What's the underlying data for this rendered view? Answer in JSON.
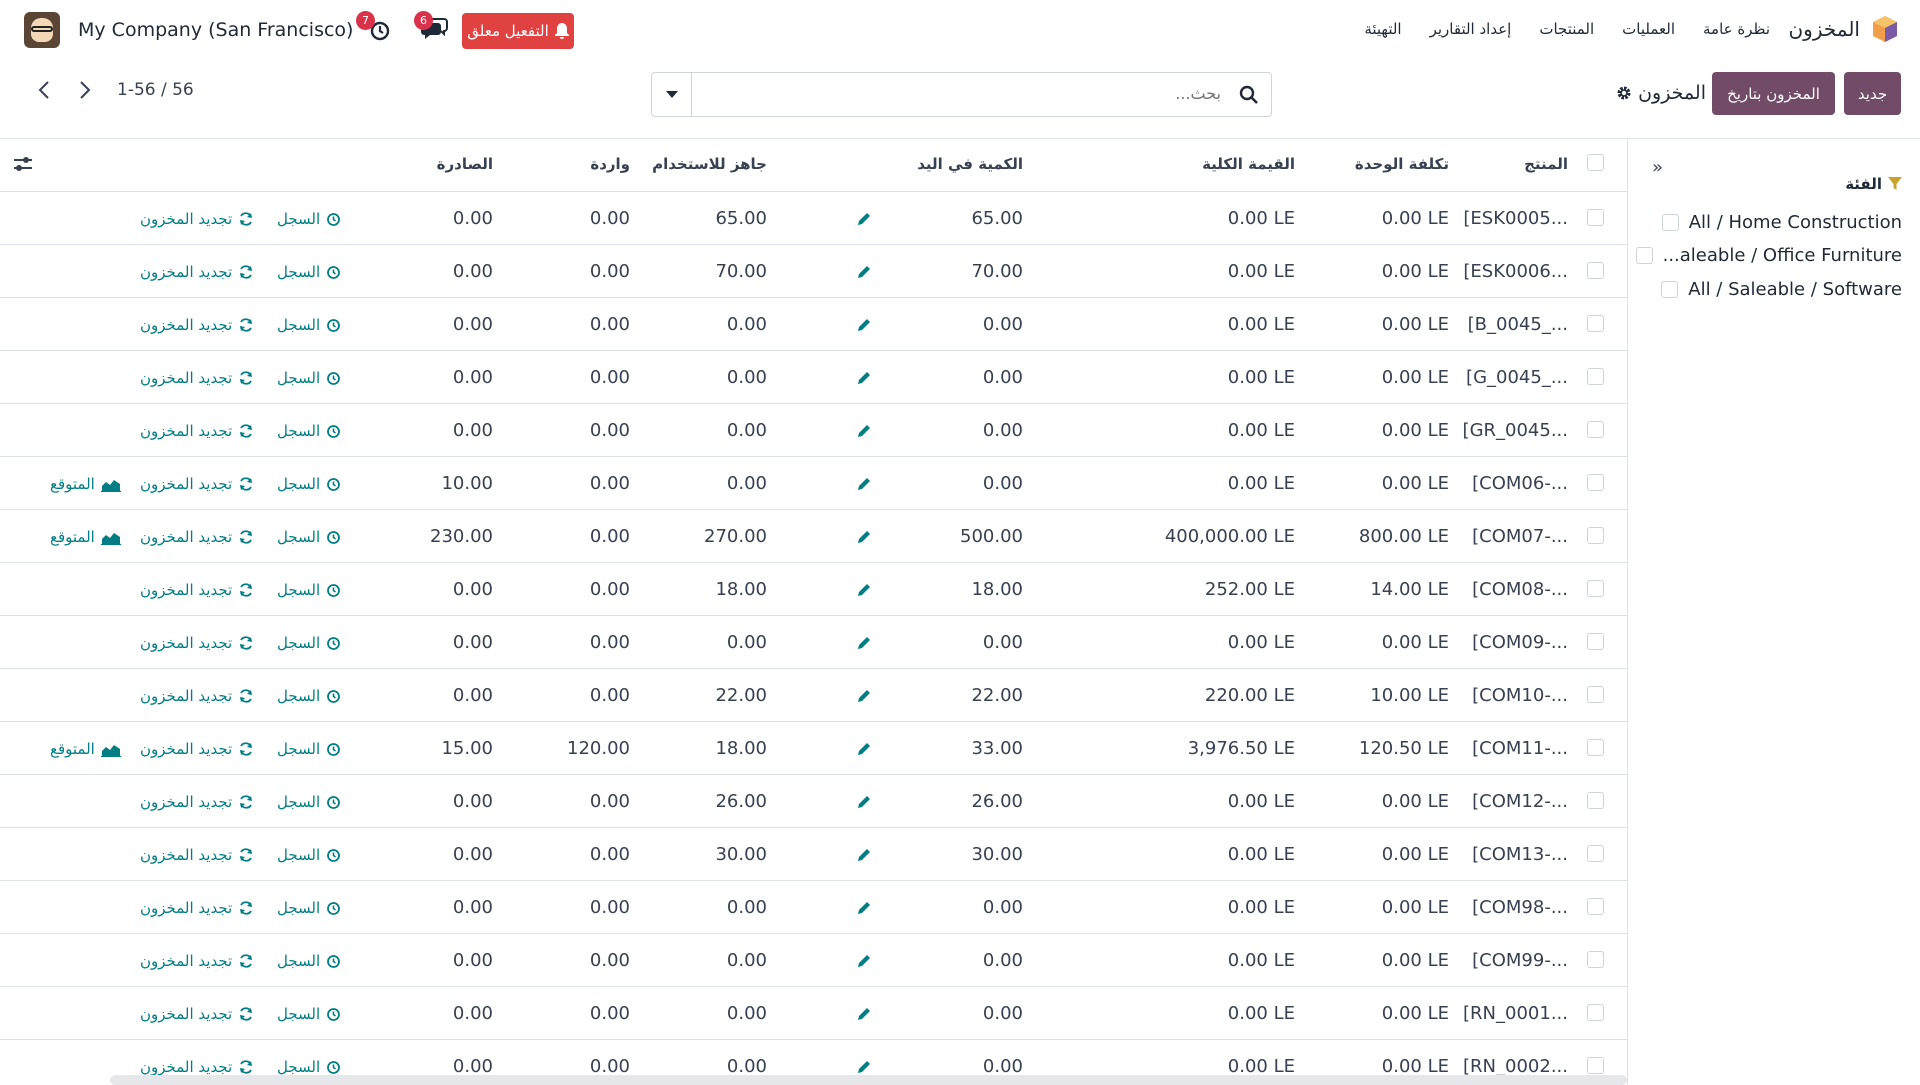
{
  "navbar": {
    "brand": "المخزون",
    "menu": [
      "نظرة عامة",
      "العمليات",
      "المنتجات",
      "إعداد التقارير",
      "التهيئة"
    ],
    "activation_label": "التفعيل معلق",
    "chat_count": "6",
    "activity_count": "7",
    "company": "My Company (San Francisco)"
  },
  "control": {
    "new_label": "جديد",
    "date_label": "المخزون بتاريخ",
    "title": "المخزون",
    "search_placeholder": "بحث...",
    "pager": "1-56 / 56"
  },
  "sidepanel": {
    "title": "الفئة",
    "categories": [
      "All / Home Construction",
      "...aleable / Office Furniture",
      "All / Saleable / Software"
    ]
  },
  "table": {
    "headers": {
      "product": "المنتج",
      "unit_cost": "تكلفة الوحدة",
      "total_value": "القيمة الكلية",
      "on_hand": "الكمية في اليد",
      "available": "جاهز للاستخدام",
      "incoming": "واردة",
      "outgoing": "الصادرة"
    },
    "history_label": "السجل",
    "replenish_label": "تجديد المخزون",
    "forecast_label": "المتوقع",
    "rows": [
      {
        "product": "[ESK0005...",
        "unit_cost": "0.00 LE",
        "total_value": "0.00 LE",
        "on_hand": "65.00",
        "available": "65.00",
        "incoming": "0.00",
        "outgoing": "0.00",
        "forecast": false
      },
      {
        "product": "[ESK0006...",
        "unit_cost": "0.00 LE",
        "total_value": "0.00 LE",
        "on_hand": "70.00",
        "available": "70.00",
        "incoming": "0.00",
        "outgoing": "0.00",
        "forecast": false
      },
      {
        "product": "[B_0045_...",
        "unit_cost": "0.00 LE",
        "total_value": "0.00 LE",
        "on_hand": "0.00",
        "available": "0.00",
        "incoming": "0.00",
        "outgoing": "0.00",
        "forecast": false
      },
      {
        "product": "[G_0045_...",
        "unit_cost": "0.00 LE",
        "total_value": "0.00 LE",
        "on_hand": "0.00",
        "available": "0.00",
        "incoming": "0.00",
        "outgoing": "0.00",
        "forecast": false
      },
      {
        "product": "[GR_0045...",
        "unit_cost": "0.00 LE",
        "total_value": "0.00 LE",
        "on_hand": "0.00",
        "available": "0.00",
        "incoming": "0.00",
        "outgoing": "0.00",
        "forecast": false
      },
      {
        "product": "[COM06-...",
        "unit_cost": "0.00 LE",
        "total_value": "0.00 LE",
        "on_hand": "0.00",
        "available": "0.00",
        "incoming": "0.00",
        "outgoing": "10.00",
        "forecast": true
      },
      {
        "product": "[COM07-...",
        "unit_cost": "800.00 LE",
        "total_value": "400,000.00 LE",
        "on_hand": "500.00",
        "available": "270.00",
        "incoming": "0.00",
        "outgoing": "230.00",
        "forecast": true
      },
      {
        "product": "[COM08-...",
        "unit_cost": "14.00 LE",
        "total_value": "252.00 LE",
        "on_hand": "18.00",
        "available": "18.00",
        "incoming": "0.00",
        "outgoing": "0.00",
        "forecast": false
      },
      {
        "product": "[COM09-...",
        "unit_cost": "0.00 LE",
        "total_value": "0.00 LE",
        "on_hand": "0.00",
        "available": "0.00",
        "incoming": "0.00",
        "outgoing": "0.00",
        "forecast": false
      },
      {
        "product": "[COM10-...",
        "unit_cost": "10.00 LE",
        "total_value": "220.00 LE",
        "on_hand": "22.00",
        "available": "22.00",
        "incoming": "0.00",
        "outgoing": "0.00",
        "forecast": false
      },
      {
        "product": "[COM11-...",
        "unit_cost": "120.50 LE",
        "total_value": "3,976.50 LE",
        "on_hand": "33.00",
        "available": "18.00",
        "incoming": "120.00",
        "outgoing": "15.00",
        "forecast": true
      },
      {
        "product": "[COM12-...",
        "unit_cost": "0.00 LE",
        "total_value": "0.00 LE",
        "on_hand": "26.00",
        "available": "26.00",
        "incoming": "0.00",
        "outgoing": "0.00",
        "forecast": false
      },
      {
        "product": "[COM13-...",
        "unit_cost": "0.00 LE",
        "total_value": "0.00 LE",
        "on_hand": "30.00",
        "available": "30.00",
        "incoming": "0.00",
        "outgoing": "0.00",
        "forecast": false
      },
      {
        "product": "[COM98-...",
        "unit_cost": "0.00 LE",
        "total_value": "0.00 LE",
        "on_hand": "0.00",
        "available": "0.00",
        "incoming": "0.00",
        "outgoing": "0.00",
        "forecast": false
      },
      {
        "product": "[COM99-...",
        "unit_cost": "0.00 LE",
        "total_value": "0.00 LE",
        "on_hand": "0.00",
        "available": "0.00",
        "incoming": "0.00",
        "outgoing": "0.00",
        "forecast": false
      },
      {
        "product": "[RN_0001...",
        "unit_cost": "0.00 LE",
        "total_value": "0.00 LE",
        "on_hand": "0.00",
        "available": "0.00",
        "incoming": "0.00",
        "outgoing": "0.00",
        "forecast": false
      },
      {
        "product": "[RN_0002...",
        "unit_cost": "0.00 LE",
        "total_value": "0.00 LE",
        "on_hand": "0.00",
        "available": "0.00",
        "incoming": "0.00",
        "outgoing": "0.00",
        "forecast": false
      }
    ]
  },
  "colors": {
    "primary": "#714b67",
    "link": "#017e84",
    "danger": "#e04242",
    "badge": "#d9324a",
    "filter_icon": "#c9a32c"
  }
}
